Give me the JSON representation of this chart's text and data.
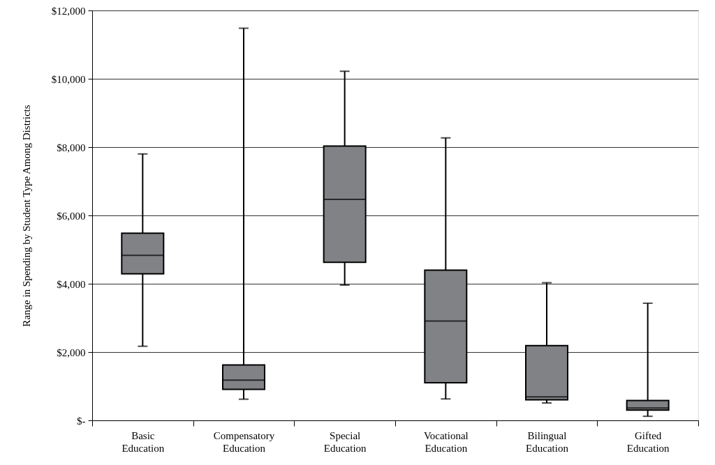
{
  "chart_data": {
    "type": "box",
    "ylabel": "Range in Spending by Student Type Among Districts",
    "categories": [
      "Basic Education",
      "Compensatory Education",
      "Special Education",
      "Vocational Education",
      "Bilingual Education",
      "Gifted Education"
    ],
    "boxes": [
      {
        "low": 2170,
        "q1": 4290,
        "median": 4830,
        "q3": 5480,
        "high": 7800
      },
      {
        "low": 620,
        "q1": 910,
        "median": 1180,
        "q3": 1620,
        "high": 11480
      },
      {
        "low": 3960,
        "q1": 4630,
        "median": 6470,
        "q3": 8030,
        "high": 10220
      },
      {
        "low": 630,
        "q1": 1100,
        "median": 2910,
        "q3": 4400,
        "high": 8270
      },
      {
        "low": 510,
        "q1": 600,
        "median": 690,
        "q3": 2190,
        "high": 4030
      },
      {
        "low": 120,
        "q1": 300,
        "median": 360,
        "q3": 580,
        "high": 3430
      }
    ],
    "color": "#808285",
    "ylim": [
      0,
      12000
    ],
    "yticks": [
      {
        "value": 0,
        "label": "$-"
      },
      {
        "value": 2000,
        "label": "$2,000"
      },
      {
        "value": 4000,
        "label": "$4,000"
      },
      {
        "value": 6000,
        "label": "$6,000"
      },
      {
        "value": 8000,
        "label": "$8,000"
      },
      {
        "value": 10000,
        "label": "$10,000"
      },
      {
        "value": 12000,
        "label": "$12,000"
      }
    ],
    "grid": "y"
  }
}
